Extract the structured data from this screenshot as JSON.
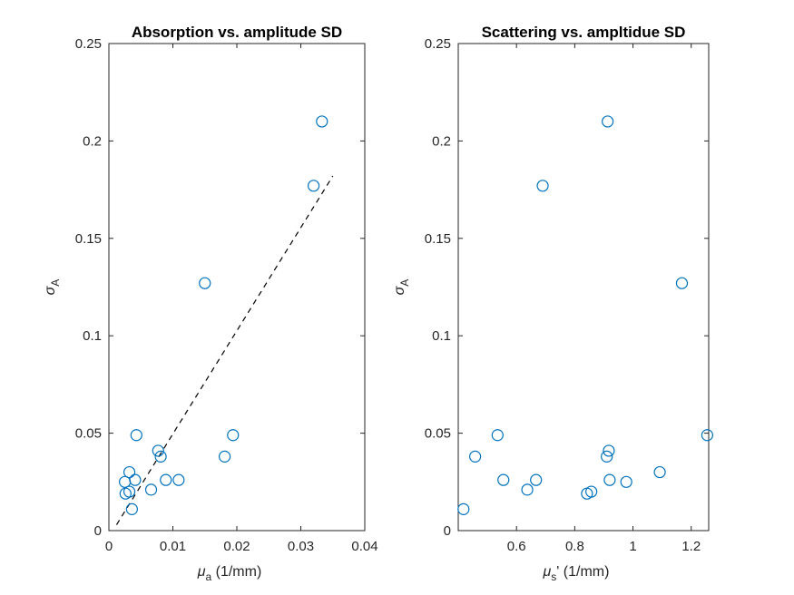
{
  "chart_data": [
    {
      "type": "scatter",
      "title": "Absorption vs. amplitude SD",
      "xlabel": {
        "base": "μ",
        "sub": "a",
        "rest": " (1/mm)"
      },
      "ylabel": {
        "base": "σ",
        "sub": "A"
      },
      "xlim": [
        0,
        0.04
      ],
      "ylim": [
        0,
        0.25
      ],
      "xticks": [
        0,
        0.01,
        0.02,
        0.03,
        0.04
      ],
      "xtick_labels": [
        "0",
        "0.01",
        "0.02",
        "0.03",
        "0.04"
      ],
      "yticks": [
        0,
        0.05,
        0.1,
        0.15,
        0.2,
        0.25
      ],
      "ytick_labels": [
        "0",
        "0.05",
        "0.1",
        "0.15",
        "0.2",
        "0.25"
      ],
      "grid": false,
      "marker_color": "#0072BD",
      "x": [
        0.0025,
        0.0026,
        0.0032,
        0.0032,
        0.0036,
        0.0041,
        0.0043,
        0.0066,
        0.0077,
        0.0081,
        0.0089,
        0.0109,
        0.015,
        0.0181,
        0.0194,
        0.032,
        0.0333
      ],
      "y": [
        0.025,
        0.019,
        0.02,
        0.03,
        0.011,
        0.026,
        0.049,
        0.021,
        0.041,
        0.038,
        0.026,
        0.026,
        0.127,
        0.038,
        0.049,
        0.177,
        0.21
      ],
      "fit_line": {
        "x": [
          0.0012,
          0.035
        ],
        "y": [
          0.003,
          0.182
        ],
        "style": "dashed",
        "color": "#000000"
      }
    },
    {
      "type": "scatter",
      "title": "Scattering vs. ampltidue SD",
      "xlabel": {
        "base": "μ",
        "sub": "s",
        "rest": "' (1/mm)"
      },
      "ylabel": {
        "base": "σ",
        "sub": "A"
      },
      "xlim": [
        0.4,
        1.26
      ],
      "ylim": [
        0,
        0.25
      ],
      "xticks": [
        0.6,
        0.8,
        1.0,
        1.2
      ],
      "xtick_labels": [
        "0.6",
        "0.8",
        "1",
        "1.2"
      ],
      "yticks": [
        0,
        0.05,
        0.1,
        0.15,
        0.2,
        0.25
      ],
      "ytick_labels": [
        "0",
        "0.05",
        "0.1",
        "0.15",
        "0.2",
        "0.25"
      ],
      "grid": false,
      "marker_color": "#0072BD",
      "x": [
        0.418,
        0.458,
        0.535,
        0.555,
        0.637,
        0.667,
        0.69,
        0.842,
        0.857,
        0.91,
        0.913,
        0.917,
        0.92,
        0.977,
        1.092,
        1.168,
        1.255
      ],
      "y": [
        0.011,
        0.038,
        0.049,
        0.026,
        0.021,
        0.026,
        0.177,
        0.019,
        0.02,
        0.038,
        0.21,
        0.041,
        0.026,
        0.025,
        0.03,
        0.127,
        0.049
      ]
    }
  ]
}
